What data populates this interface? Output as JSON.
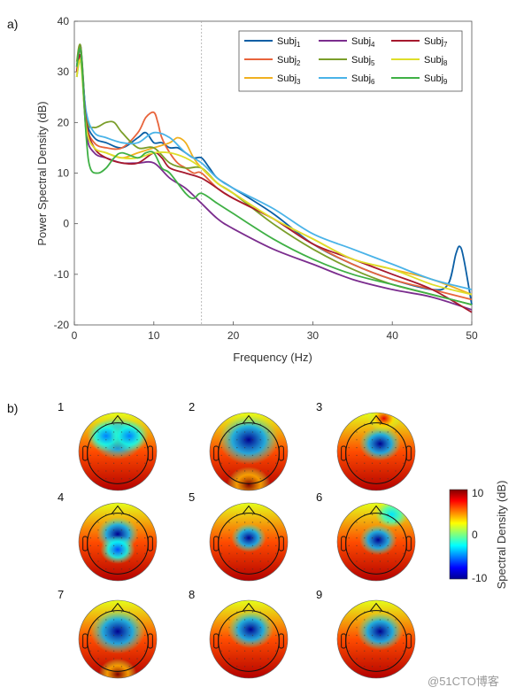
{
  "panel_a_label": "a)",
  "panel_b_label": "b)",
  "chart_data": [
    {
      "type": "line",
      "xlabel": "Frequency (Hz)",
      "ylabel": "Power Spectral Density (dB)",
      "xlim": [
        0,
        50
      ],
      "ylim": [
        -20,
        40
      ],
      "xticks": [
        0,
        10,
        20,
        30,
        40,
        50
      ],
      "yticks": [
        -20,
        -10,
        0,
        10,
        20,
        30,
        40
      ],
      "vline_x": 16,
      "legend_position": "top-right",
      "series": [
        {
          "name": "Subj",
          "sub": "1",
          "color": "#0b5fa5",
          "x": [
            0.3,
            0.8,
            1.5,
            2.5,
            4,
            6,
            8,
            9,
            10,
            11,
            12,
            13,
            14,
            15,
            16,
            17,
            18,
            20,
            25,
            30,
            35,
            40,
            45,
            47,
            48,
            48.5,
            49,
            50
          ],
          "y": [
            31,
            35,
            21,
            17,
            16,
            15,
            17,
            18,
            16,
            16,
            15,
            15,
            14,
            13,
            13,
            11,
            9,
            7,
            2,
            -4,
            -8,
            -11,
            -13,
            -12,
            -6,
            -4.5,
            -7,
            -16
          ]
        },
        {
          "name": "Subj",
          "sub": "2",
          "color": "#e8643c",
          "x": [
            0.3,
            0.8,
            1.5,
            2.5,
            4,
            6,
            8,
            9,
            10,
            10.5,
            11,
            12,
            13,
            14,
            15,
            16,
            18,
            20,
            25,
            30,
            35,
            40,
            45,
            50
          ],
          "y": [
            30,
            34,
            20,
            16,
            15,
            15,
            18,
            21,
            22,
            20,
            17,
            14,
            12,
            11,
            10,
            10,
            7,
            5,
            1,
            -4,
            -8,
            -11,
            -13,
            -15
          ]
        },
        {
          "name": "Subj",
          "sub": "3",
          "color": "#f0b020",
          "x": [
            0.3,
            0.8,
            1.5,
            2.5,
            4,
            6,
            8,
            10,
            12,
            13,
            14,
            15,
            16,
            18,
            20,
            25,
            30,
            35,
            40,
            45,
            50
          ],
          "y": [
            29,
            33,
            19,
            15,
            14,
            13,
            14,
            15,
            16,
            17,
            16,
            13,
            11,
            8,
            6,
            1,
            -3,
            -7,
            -9,
            -11,
            -14
          ]
        },
        {
          "name": "Subj",
          "sub": "4",
          "color": "#7b2d8e",
          "x": [
            0.3,
            0.8,
            1.5,
            2.5,
            4,
            6,
            8,
            10,
            12,
            14,
            16,
            18,
            20,
            25,
            30,
            35,
            40,
            45,
            50
          ],
          "y": [
            31,
            34,
            18,
            14,
            13,
            12,
            12,
            12,
            9,
            7,
            4,
            1,
            -1,
            -5,
            -8,
            -11,
            -13,
            -14.5,
            -17
          ]
        },
        {
          "name": "Subj",
          "sub": "5",
          "color": "#7a9e2a",
          "x": [
            0.3,
            0.8,
            1.5,
            2.5,
            4,
            5,
            6,
            8,
            10,
            12,
            14,
            16,
            18,
            20,
            25,
            30,
            35,
            40,
            45,
            50
          ],
          "y": [
            32,
            35,
            21,
            19,
            20,
            20,
            18,
            15,
            15,
            12,
            11,
            11,
            8,
            6,
            0,
            -5,
            -9,
            -12,
            -14,
            -16
          ]
        },
        {
          "name": "Subj",
          "sub": "6",
          "color": "#4ab3e8",
          "x": [
            0.3,
            0.8,
            1.5,
            2.5,
            4,
            6,
            8,
            10,
            12,
            14,
            16,
            18,
            20,
            25,
            30,
            35,
            40,
            45,
            50
          ],
          "y": [
            29,
            32,
            22,
            18,
            17,
            16,
            16,
            18,
            17,
            14,
            12,
            9,
            7,
            3,
            -2,
            -5,
            -8,
            -11,
            -13
          ]
        },
        {
          "name": "Subj",
          "sub": "7",
          "color": "#a6192e",
          "x": [
            0.3,
            0.8,
            1.5,
            2.5,
            4,
            6,
            8,
            10,
            11,
            12,
            14,
            16,
            18,
            20,
            25,
            30,
            35,
            40,
            45,
            50
          ],
          "y": [
            30,
            33,
            20,
            15,
            13,
            12,
            12,
            14,
            13,
            11,
            10,
            9,
            7,
            5,
            1,
            -4,
            -7,
            -10,
            -13,
            -17.5
          ]
        },
        {
          "name": "Subj",
          "sub": "8",
          "color": "#dede2a",
          "x": [
            0.3,
            0.8,
            1.5,
            2.5,
            4,
            6,
            8,
            10,
            12,
            14,
            16,
            18,
            20,
            25,
            30,
            35,
            40,
            45,
            50
          ],
          "y": [
            29,
            32,
            19,
            15,
            14,
            13,
            13,
            14,
            14,
            13,
            11,
            8,
            6,
            1,
            -3,
            -7,
            -9,
            -12,
            -14
          ]
        },
        {
          "name": "Subj",
          "sub": "9",
          "color": "#3fb045",
          "x": [
            0.3,
            0.8,
            1.5,
            2,
            3,
            4,
            5,
            6,
            8,
            9,
            10,
            11,
            12,
            14,
            15,
            16,
            18,
            20,
            25,
            30,
            35,
            40,
            45,
            50
          ],
          "y": [
            31,
            34,
            17,
            11,
            10,
            11,
            13,
            14,
            13,
            14,
            14,
            11,
            10,
            6,
            5,
            6,
            4,
            2,
            -3,
            -7,
            -10,
            -12,
            -14,
            -16
          ]
        }
      ]
    },
    {
      "type": "heatmap",
      "maps": [
        {
          "label": "1",
          "spots": [
            {
              "x": 0.0,
              "y": -0.35,
              "v": -10,
              "r": 0.48
            },
            {
              "x": -0.3,
              "y": -0.4,
              "v": -5,
              "r": 0.35
            },
            {
              "x": 0.3,
              "y": -0.4,
              "v": -5,
              "r": 0.35
            }
          ]
        },
        {
          "label": "2",
          "spots": [
            {
              "x": 0.0,
              "y": -0.3,
              "v": -10,
              "r": 0.55
            },
            {
              "x": 0.0,
              "y": 0.85,
              "v": 10,
              "r": 0.4
            }
          ]
        },
        {
          "label": "3",
          "spots": [
            {
              "x": 0.1,
              "y": -0.2,
              "v": -10,
              "r": 0.38
            },
            {
              "x": 0.2,
              "y": -0.85,
              "v": 8,
              "r": 0.3
            }
          ]
        },
        {
          "label": "4",
          "spots": [
            {
              "x": 0.0,
              "y": -0.2,
              "v": -10,
              "r": 0.38
            },
            {
              "x": 0.0,
              "y": 0.2,
              "v": -6,
              "r": 0.32
            }
          ]
        },
        {
          "label": "5",
          "spots": [
            {
              "x": 0.0,
              "y": -0.1,
              "v": -10,
              "r": 0.32
            }
          ]
        },
        {
          "label": "6",
          "spots": [
            {
              "x": 0.05,
              "y": -0.05,
              "v": -10,
              "r": 0.34
            },
            {
              "x": 0.4,
              "y": -0.7,
              "v": -3,
              "r": 0.3
            }
          ]
        },
        {
          "label": "7",
          "spots": [
            {
              "x": 0.0,
              "y": -0.2,
              "v": -10,
              "r": 0.5
            },
            {
              "x": 0.0,
              "y": 0.9,
              "v": 10,
              "r": 0.35
            }
          ]
        },
        {
          "label": "8",
          "spots": [
            {
              "x": 0.05,
              "y": -0.25,
              "v": -10,
              "r": 0.42
            }
          ]
        },
        {
          "label": "9",
          "spots": [
            {
              "x": 0.1,
              "y": -0.2,
              "v": -10,
              "r": 0.42
            }
          ]
        }
      ],
      "colorbar": {
        "label": "Spectral Density (dB)",
        "ticks": [
          "10",
          "0",
          "-10"
        ],
        "range": [
          -10,
          10
        ]
      }
    }
  ],
  "watermark": "@51CTO博客"
}
